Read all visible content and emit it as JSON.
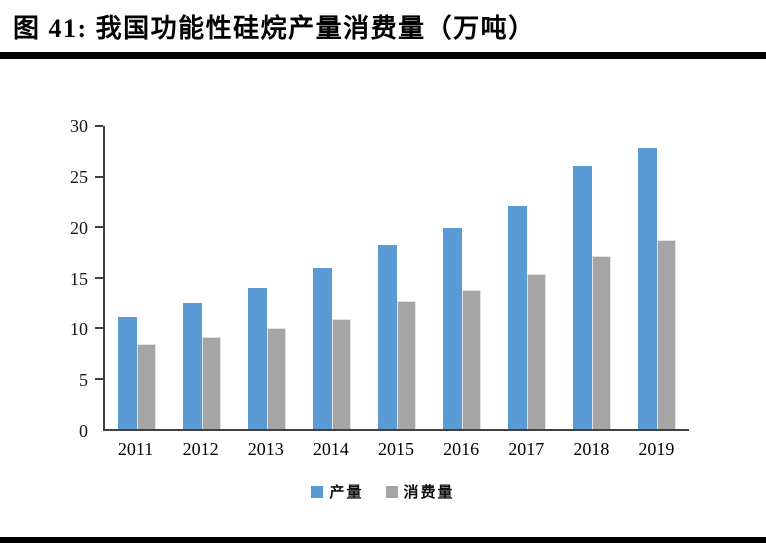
{
  "header": {
    "title": "图  41:  我国功能性硅烷产量消费量（万吨）"
  },
  "chart_data": {
    "type": "bar",
    "title": "我国功能性硅烷产量消费量（万吨）",
    "categories": [
      "2011",
      "2012",
      "2013",
      "2014",
      "2015",
      "2016",
      "2017",
      "2018",
      "2019"
    ],
    "series": [
      {
        "name": "产量",
        "key": "production",
        "color": "#5B9BD5",
        "values": [
          11.1,
          12.5,
          14.0,
          15.9,
          18.2,
          19.9,
          22.1,
          26.0,
          27.8
        ]
      },
      {
        "name": "消费量",
        "key": "consumption",
        "color": "#A5A5A5",
        "values": [
          8.4,
          9.1,
          10.0,
          10.9,
          12.7,
          13.8,
          15.3,
          17.1,
          18.7
        ]
      }
    ],
    "xlabel": "",
    "ylabel": "",
    "ylim": [
      0,
      30
    ],
    "yticks": [
      0,
      5,
      10,
      15,
      20,
      25,
      30
    ],
    "grid": false,
    "legend_position": "bottom"
  },
  "colors": {
    "production": "#5B9BD5",
    "consumption": "#A5A5A5",
    "axis": "#404040",
    "rule": "#000000"
  }
}
